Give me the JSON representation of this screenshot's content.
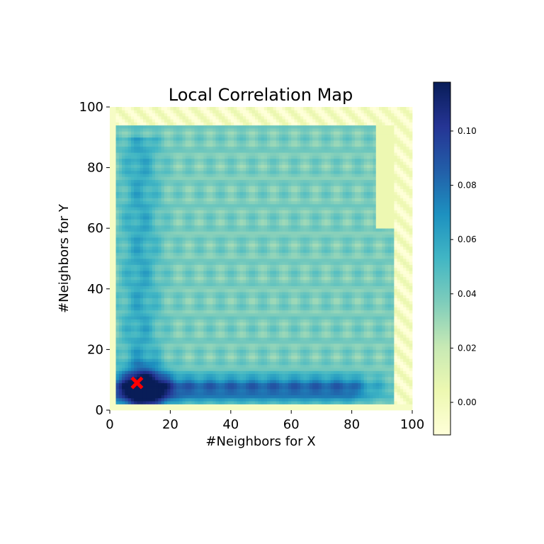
{
  "chart_data": {
    "type": "heatmap",
    "title": "Local Correlation Map",
    "xlabel": "#Neighbors for X",
    "ylabel": "#Neighbors for Y",
    "xlim": [
      0,
      100
    ],
    "ylim": [
      0,
      100
    ],
    "xticks": [
      0,
      20,
      40,
      60,
      80,
      100
    ],
    "yticks": [
      0,
      20,
      40,
      60,
      80,
      100
    ],
    "colormap": "YlGnBu",
    "colorbar": {
      "range": [
        -0.012,
        0.118
      ],
      "ticks": [
        0.0,
        0.02,
        0.04,
        0.06,
        0.08,
        0.1
      ],
      "tick_labels": [
        "0.00",
        "0.02",
        "0.04",
        "0.06",
        "0.08",
        "0.10"
      ]
    },
    "grid": false,
    "optimal_point": {
      "x": 9,
      "y": 9,
      "marker": "X",
      "color": "#ff0000"
    },
    "heatmap_model": {
      "background": 0.038,
      "peak": {
        "x": 12,
        "y": 7,
        "value": 0.118
      },
      "horizontal_band": {
        "y": 7,
        "value": 0.085,
        "x_extent": 80
      },
      "vertical_band": {
        "x": 10,
        "value": 0.075,
        "y_extent": 90
      },
      "edge_value": -0.004,
      "outer_edge": 94
    }
  }
}
